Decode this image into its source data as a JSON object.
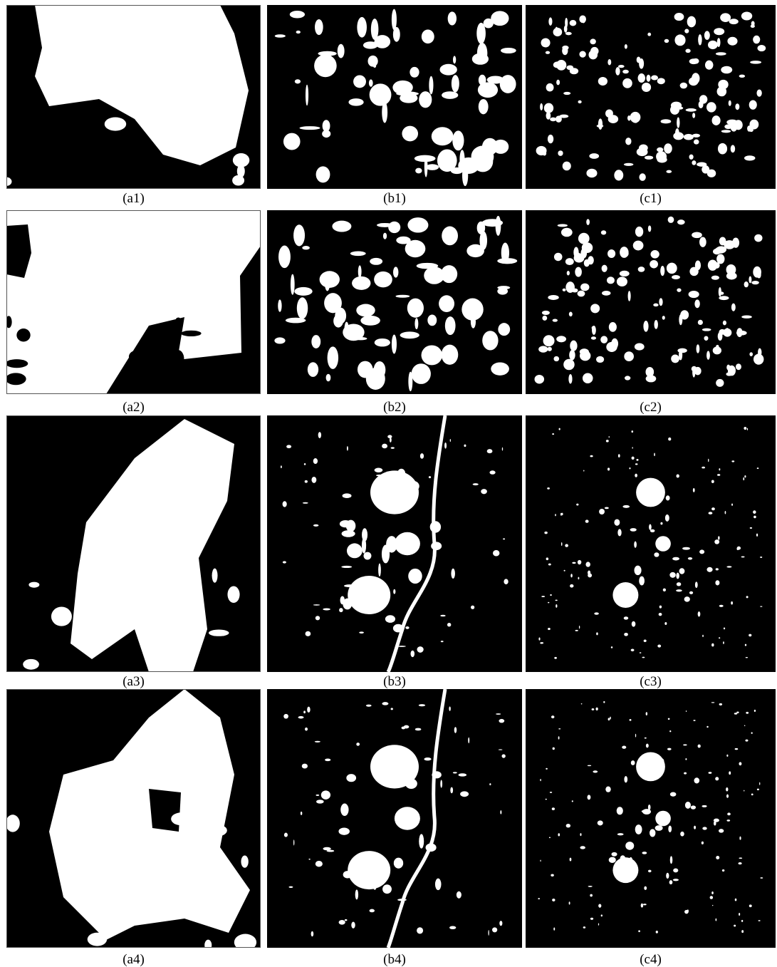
{
  "figure": {
    "panels": [
      {
        "caption": "(a1)"
      },
      {
        "caption": "(b1)"
      },
      {
        "caption": "(c1)"
      },
      {
        "caption": "(a2)"
      },
      {
        "caption": "(b2)"
      },
      {
        "caption": "(c2)"
      },
      {
        "caption": "(a3)"
      },
      {
        "caption": "(b3)"
      },
      {
        "caption": "(c3)"
      },
      {
        "caption": "(a4)"
      },
      {
        "caption": "(b4)"
      },
      {
        "caption": "(c4)"
      }
    ]
  }
}
